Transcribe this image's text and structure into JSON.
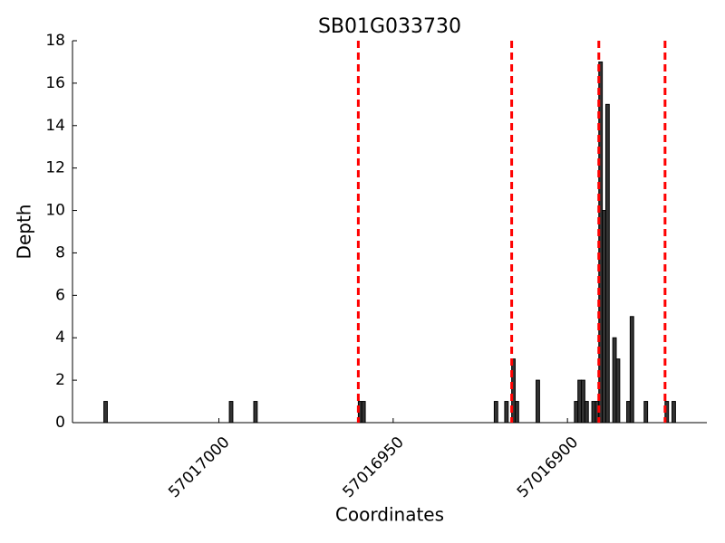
{
  "chart_data": {
    "type": "bar",
    "title": "SB01G033730",
    "x_label": "Coordinates",
    "y_label": "Depth",
    "x": [
      57017033,
      57016997,
      57016990,
      57016960,
      57016959,
      57016921,
      57016918,
      57016916,
      57016915,
      57016909,
      57016898,
      57016897,
      57016896,
      57016895,
      57016893,
      57016892,
      57016891,
      57016890,
      57016889,
      57016887,
      57016886,
      57016883,
      57016882,
      57016878,
      57016872,
      57016870
    ],
    "values": [
      1,
      1,
      1,
      1,
      1,
      1,
      1,
      3,
      1,
      2,
      1,
      2,
      2,
      1,
      1,
      1,
      17,
      10,
      15,
      4,
      3,
      1,
      5,
      1,
      1,
      1
    ],
    "color": "#333333",
    "vlines": [
      57016960,
      57016916,
      57016891,
      57016872
    ],
    "vline_color": "#ff0000",
    "xlim": [
      57017042,
      57016860
    ],
    "xticks": [
      57017000,
      57016950,
      57016900
    ],
    "ylim": [
      0,
      18
    ],
    "yticks": [
      0,
      2,
      4,
      6,
      8,
      10,
      12,
      14,
      16,
      18
    ],
    "grid": false
  }
}
